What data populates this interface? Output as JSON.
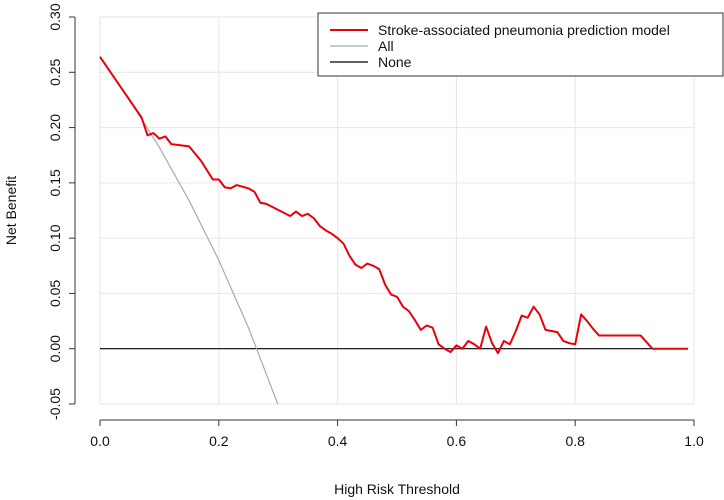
{
  "chart_data": {
    "type": "line",
    "title": "",
    "xlabel": "High Risk Threshold",
    "ylabel": "Net Benefit",
    "xlim": [
      0,
      1.0
    ],
    "ylim": [
      -0.05,
      0.3
    ],
    "x_ticks": [
      "0.0",
      "0.2",
      "0.4",
      "0.6",
      "0.8",
      "1.0"
    ],
    "y_ticks": [
      "-0.05",
      "0.00",
      "0.05",
      "0.10",
      "0.15",
      "0.20",
      "0.25",
      "0.30"
    ],
    "grid": true,
    "legend_position": "top-right",
    "series": [
      {
        "name": "Stroke-associated pneumonia prediction model",
        "color": "#e8000b",
        "x": [
          0.0,
          0.07,
          0.08,
          0.09,
          0.1,
          0.11,
          0.12,
          0.15,
          0.17,
          0.19,
          0.2,
          0.21,
          0.22,
          0.23,
          0.25,
          0.26,
          0.27,
          0.28,
          0.32,
          0.33,
          0.34,
          0.35,
          0.36,
          0.37,
          0.38,
          0.39,
          0.4,
          0.41,
          0.42,
          0.43,
          0.44,
          0.45,
          0.46,
          0.47,
          0.48,
          0.49,
          0.5,
          0.51,
          0.52,
          0.53,
          0.54,
          0.55,
          0.56,
          0.57,
          0.58,
          0.59,
          0.6,
          0.61,
          0.62,
          0.63,
          0.64,
          0.65,
          0.66,
          0.67,
          0.68,
          0.69,
          0.7,
          0.71,
          0.72,
          0.73,
          0.74,
          0.75,
          0.76,
          0.77,
          0.78,
          0.79,
          0.8,
          0.81,
          0.82,
          0.83,
          0.84,
          0.85,
          0.86,
          0.87,
          0.88,
          0.89,
          0.9,
          0.91,
          0.92,
          0.93,
          0.95,
          0.97,
          0.99
        ],
        "y": [
          0.264,
          0.209,
          0.193,
          0.195,
          0.19,
          0.192,
          0.185,
          0.183,
          0.17,
          0.153,
          0.153,
          0.146,
          0.145,
          0.148,
          0.145,
          0.142,
          0.132,
          0.131,
          0.12,
          0.124,
          0.12,
          0.122,
          0.118,
          0.111,
          0.107,
          0.104,
          0.1,
          0.095,
          0.084,
          0.076,
          0.073,
          0.077,
          0.075,
          0.072,
          0.058,
          0.049,
          0.047,
          0.038,
          0.034,
          0.026,
          0.017,
          0.021,
          0.019,
          0.004,
          0.0,
          -0.003,
          0.003,
          0.0,
          0.007,
          0.004,
          0.0,
          0.02,
          0.005,
          -0.004,
          0.007,
          0.004,
          0.016,
          0.03,
          0.028,
          0.038,
          0.031,
          0.017,
          0.016,
          0.015,
          0.007,
          0.005,
          0.004,
          0.031,
          0.025,
          0.018,
          0.012,
          0.012,
          0.012,
          0.012,
          0.012,
          0.012,
          0.012,
          0.012,
          0.006,
          0.0,
          0.0,
          0.0,
          0.0
        ]
      },
      {
        "name": "All",
        "color": "#aaaaaa",
        "prevalence": 0.264,
        "x": [
          0.0,
          0.05,
          0.1,
          0.15,
          0.2,
          0.25,
          0.3,
          0.31
        ],
        "y": [
          0.264,
          0.225,
          0.182,
          0.134,
          0.08,
          0.019,
          -0.051,
          -0.066
        ]
      },
      {
        "name": "None",
        "color": "#000000",
        "x": [
          0.0,
          0.99
        ],
        "y": [
          0.0,
          0.0
        ]
      }
    ]
  }
}
